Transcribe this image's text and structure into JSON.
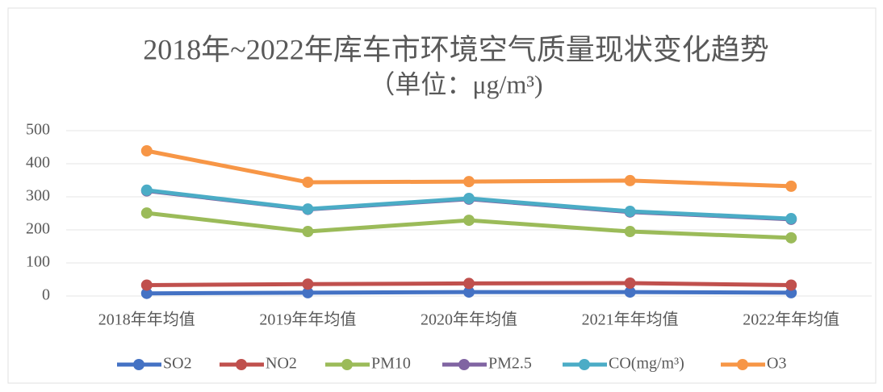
{
  "chart_data": {
    "type": "line",
    "title": "2018年~2022年库车市环境空气质量现状变化趋势",
    "subtitle": "（单位：μg/m³)",
    "categories": [
      "2018年年均值",
      "2019年年均值",
      "2020年年均值",
      "2021年年均值",
      "2022年年均值"
    ],
    "series": [
      {
        "name": "SO2",
        "color": "#4472c4",
        "values": [
          8,
          10,
          12,
          12,
          10
        ]
      },
      {
        "name": "NO2",
        "color": "#c0504d",
        "values": [
          33,
          36,
          38,
          39,
          33
        ]
      },
      {
        "name": "PM10",
        "color": "#9bbb59",
        "values": [
          251,
          195,
          229,
          195,
          176
        ]
      },
      {
        "name": "PM2.5",
        "color": "#8064a2",
        "values": [
          318,
          262,
          293,
          254,
          232
        ]
      },
      {
        "name": "CO(mg/m³)",
        "color": "#4bacc6",
        "values": [
          320,
          263,
          295,
          256,
          234
        ]
      },
      {
        "name": "O3",
        "color": "#f79646",
        "values": [
          439,
          344,
          346,
          349,
          332
        ]
      }
    ],
    "ylim": [
      0,
      500
    ],
    "yticks": [
      0,
      100,
      200,
      300,
      400,
      500
    ],
    "grid": true,
    "legend": "bottom"
  }
}
